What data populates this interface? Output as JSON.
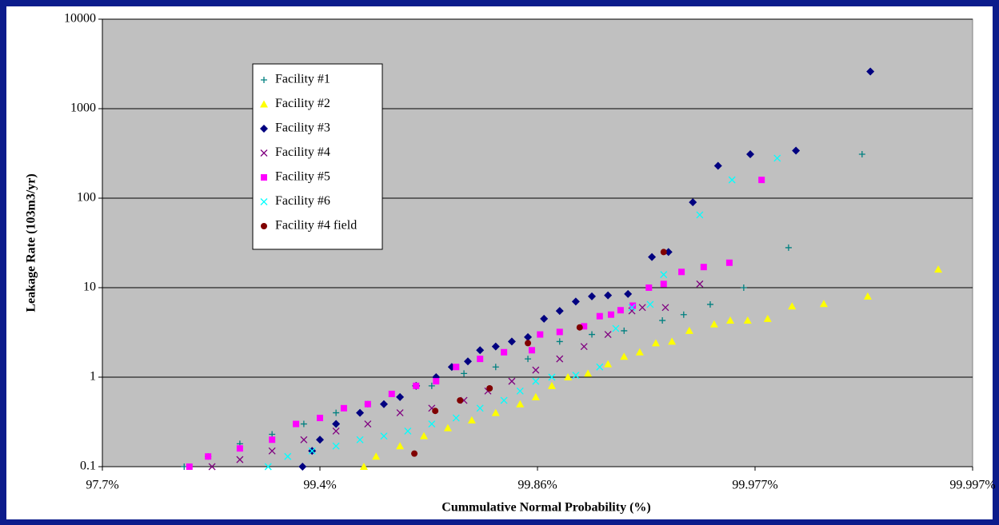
{
  "chart_data": {
    "type": "scatter",
    "xlabel": "Cummulative Normal Probability (%)",
    "ylabel": "Leakage Rate (103m3/yr)",
    "xlim": [
      2,
      4
    ],
    "xticks": [
      {
        "value": 2,
        "label": "97.7%"
      },
      {
        "value": 2.5,
        "label": "99.4%"
      },
      {
        "value": 3,
        "label": "99.86%"
      },
      {
        "value": 3.5,
        "label": "99.977%"
      },
      {
        "value": 4,
        "label": "99.997%"
      }
    ],
    "ylim": [
      0.1,
      10000
    ],
    "yticks": [
      0.1,
      1,
      10,
      100,
      1000,
      10000
    ],
    "yscale": "log",
    "grid": true,
    "legend": "upper left",
    "series": [
      {
        "name": "Facility #1",
        "color": "#008080",
        "marker": "plus",
        "x": [
          2.188,
          2.243,
          2.316,
          2.39,
          2.463,
          2.537,
          2.61,
          2.684,
          2.757,
          2.831,
          2.904,
          2.978,
          3.051,
          3.125,
          3.199,
          3.287,
          3.336,
          3.397,
          3.474,
          3.577,
          3.746
        ],
        "values": [
          0.1,
          0.13,
          0.18,
          0.23,
          0.3,
          0.4,
          0.5,
          0.6,
          0.8,
          1.1,
          1.3,
          1.6,
          2.5,
          3,
          3.3,
          4.3,
          5,
          6.5,
          10,
          28,
          310
        ]
      },
      {
        "name": "Facility #2",
        "color": "#ffff00",
        "marker": "triangle",
        "x": [
          2.601,
          2.629,
          2.684,
          2.739,
          2.794,
          2.849,
          2.904,
          2.96,
          2.996,
          3.033,
          3.07,
          3.116,
          3.162,
          3.199,
          3.235,
          3.272,
          3.309,
          3.349,
          3.406,
          3.443,
          3.483,
          3.529,
          3.585,
          3.658,
          3.759,
          3.921
        ],
        "values": [
          0.1,
          0.13,
          0.17,
          0.22,
          0.27,
          0.33,
          0.4,
          0.5,
          0.6,
          0.8,
          1.0,
          1.1,
          1.4,
          1.7,
          1.9,
          2.4,
          2.5,
          3.3,
          3.9,
          4.3,
          4.3,
          4.5,
          6.2,
          6.6,
          8,
          16
        ]
      },
      {
        "name": "Facility #3",
        "color": "#000080",
        "marker": "diamond",
        "x": [
          2.46,
          2.482,
          2.5,
          2.537,
          2.592,
          2.647,
          2.684,
          2.721,
          2.767,
          2.803,
          2.84,
          2.868,
          2.904,
          2.941,
          2.978,
          3.015,
          3.051,
          3.088,
          3.125,
          3.162,
          3.208,
          3.263,
          3.301,
          3.357,
          3.415,
          3.489,
          3.594,
          3.765
        ],
        "values": [
          0.1,
          0.15,
          0.2,
          0.3,
          0.4,
          0.5,
          0.6,
          0.8,
          1.0,
          1.3,
          1.5,
          2.0,
          2.2,
          2.5,
          2.8,
          4.5,
          5.5,
          7,
          8,
          8.2,
          8.5,
          22,
          25,
          90,
          230,
          310,
          340,
          2600
        ]
      },
      {
        "name": "Facility #4",
        "color": "#800080",
        "marker": "x",
        "x": [
          2.252,
          2.316,
          2.39,
          2.463,
          2.537,
          2.61,
          2.684,
          2.757,
          2.831,
          2.886,
          2.941,
          2.996,
          3.051,
          3.107,
          3.162,
          3.217,
          3.241,
          3.294,
          3.373
        ],
        "values": [
          0.1,
          0.12,
          0.15,
          0.2,
          0.25,
          0.3,
          0.4,
          0.45,
          0.55,
          0.7,
          0.9,
          1.2,
          1.6,
          2.2,
          3,
          5.5,
          6,
          6,
          11
        ]
      },
      {
        "name": "Facility #5",
        "color": "#ff00ff",
        "marker": "square",
        "x": [
          2.2,
          2.243,
          2.316,
          2.39,
          2.445,
          2.5,
          2.555,
          2.61,
          2.665,
          2.721,
          2.767,
          2.813,
          2.868,
          2.923,
          2.987,
          3.006,
          3.051,
          3.107,
          3.143,
          3.169,
          3.191,
          3.219,
          3.256,
          3.29,
          3.331,
          3.382,
          3.441,
          3.515
        ],
        "values": [
          0.1,
          0.13,
          0.16,
          0.2,
          0.3,
          0.35,
          0.45,
          0.5,
          0.65,
          0.8,
          0.9,
          1.3,
          1.6,
          1.9,
          2.0,
          3.0,
          3.2,
          3.7,
          4.8,
          5,
          5.6,
          6.3,
          10,
          11,
          15,
          17,
          19,
          160
        ]
      },
      {
        "name": "Facility #6",
        "color": "#00ffff",
        "marker": "x",
        "x": [
          2.381,
          2.426,
          2.482,
          2.537,
          2.592,
          2.647,
          2.702,
          2.757,
          2.813,
          2.868,
          2.923,
          2.96,
          2.996,
          3.033,
          3.088,
          3.143,
          3.18,
          3.217,
          3.259,
          3.29,
          3.373,
          3.447,
          3.551
        ],
        "values": [
          0.1,
          0.13,
          0.15,
          0.17,
          0.2,
          0.22,
          0.25,
          0.3,
          0.35,
          0.45,
          0.55,
          0.7,
          0.9,
          1.0,
          1.05,
          1.3,
          3.5,
          6,
          6.5,
          14,
          65,
          160,
          280
        ]
      },
      {
        "name": "Facility #4 field",
        "color": "#800000",
        "marker": "circle",
        "x": [
          2.717,
          2.765,
          2.822,
          2.89,
          2.978,
          3.097,
          3.29
        ],
        "values": [
          0.14,
          0.42,
          0.55,
          0.75,
          2.4,
          3.6,
          25
        ]
      }
    ]
  }
}
